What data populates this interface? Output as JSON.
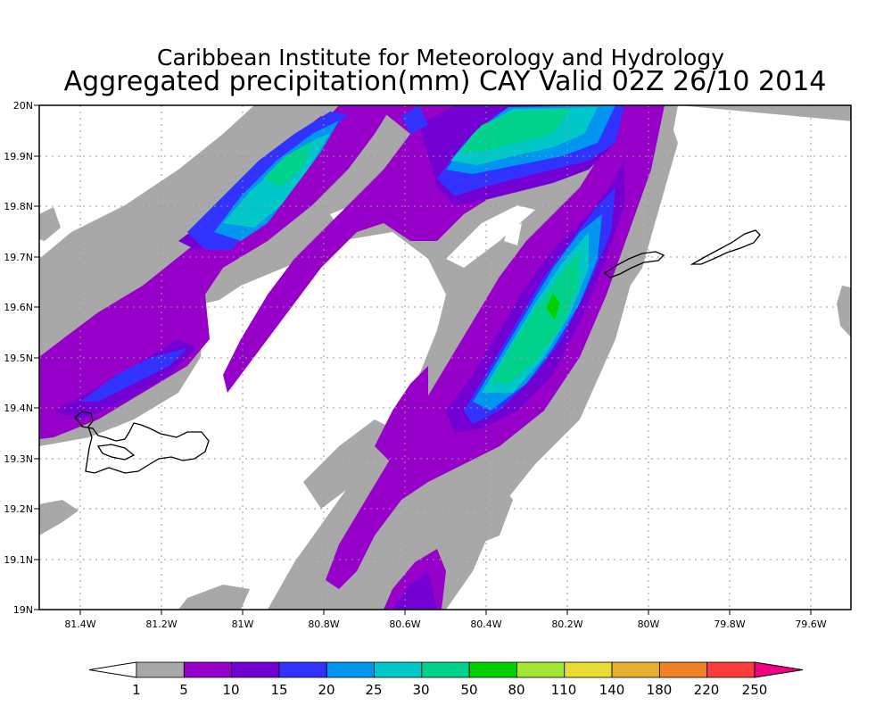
{
  "title": {
    "line1": "Caribbean Institute for Meteorology and Hydrology",
    "line2": "Aggregated precipitation(mm) CAY Valid 02Z 26/10 2014"
  },
  "map": {
    "lon_range": [
      -81.5,
      -79.5
    ],
    "lat_range": [
      19.0,
      20.0
    ],
    "lon_ticks": [
      "81.4W",
      "81.2W",
      "81W",
      "80.8W",
      "80.6W",
      "80.4W",
      "80.2W",
      "80W",
      "79.8W",
      "79.6W"
    ],
    "lat_ticks": [
      "19N",
      "19.1N",
      "19.2N",
      "19.3N",
      "19.4N",
      "19.5N",
      "19.6N",
      "19.7N",
      "19.8N",
      "19.9N",
      "20N"
    ],
    "grid": "dotted"
  },
  "colorbar": {
    "labels": [
      "1",
      "5",
      "10",
      "15",
      "20",
      "25",
      "30",
      "50",
      "80",
      "110",
      "140",
      "180",
      "220",
      "250"
    ],
    "colors": [
      "#a8a8a8",
      "#9600c8",
      "#7300d2",
      "#3232ff",
      "#0096f0",
      "#00c8c8",
      "#00d28c",
      "#00d200",
      "#a0e632",
      "#e6dc32",
      "#e6af2d",
      "#f08228",
      "#fa3c3c",
      "#f00082"
    ],
    "under_color": "#ffffff"
  },
  "colors": {
    "grey": "#a8a8a8",
    "purple": "#9600c8",
    "violet": "#7300d2",
    "blue": "#3232ff",
    "lightblue": "#0096f0",
    "teal": "#00c8c8",
    "green": "#00d28c",
    "brightgreen": "#00d200"
  }
}
